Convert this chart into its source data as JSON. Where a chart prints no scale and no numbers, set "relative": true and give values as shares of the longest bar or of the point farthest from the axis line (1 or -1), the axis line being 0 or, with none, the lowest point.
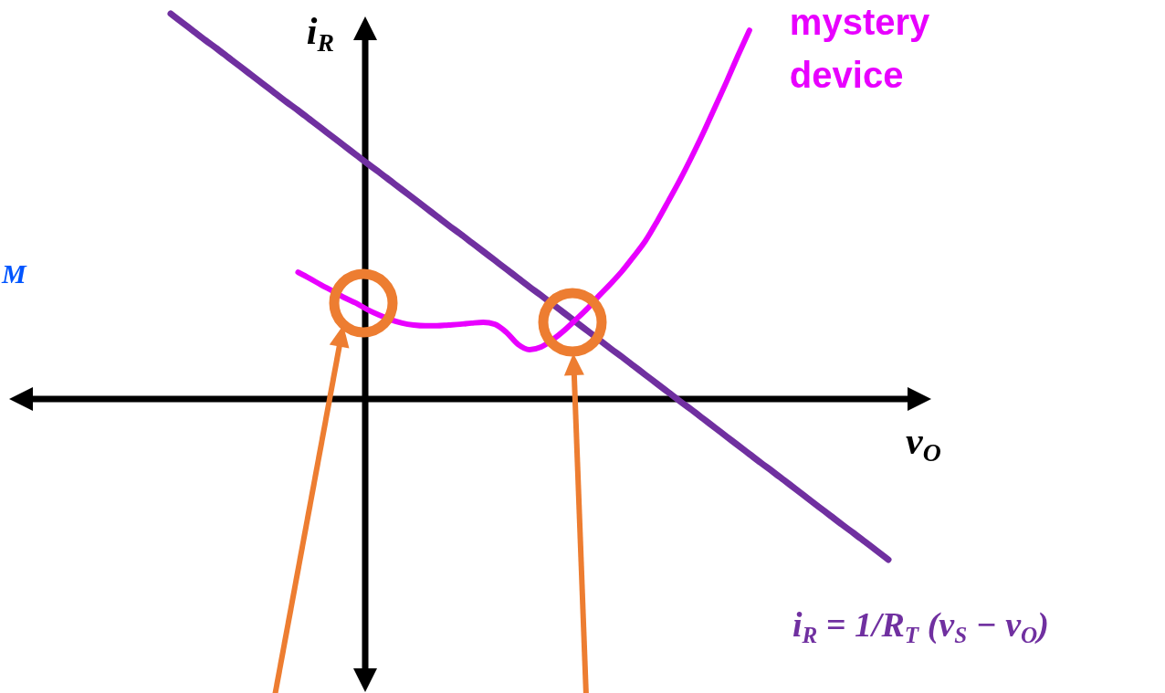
{
  "chart_data": {
    "type": "line",
    "relative": true,
    "xlabel": "v$_{O}$",
    "ylabel": "i$_{R}$",
    "annotations": [
      "M"
    ],
    "categories": [
      null,
      null,
      null,
      null,
      null,
      null,
      null,
      null,
      null,
      null,
      null,
      null,
      null,
      null,
      null,
      null,
      null,
      null,
      null,
      null,
      null,
      null,
      null,
      null,
      null,
      null,
      null,
      null,
      null,
      null,
      null,
      null,
      null,
      null,
      null,
      null,
      null,
      null,
      null,
      null,
      null,
      null,
      null,
      null,
      null,
      null,
      null,
      null,
      null,
      null,
      null,
      null,
      null,
      null,
      null,
      null,
      null,
      null,
      null,
      null,
      null,
      null,
      null
    ],
    "series": [
      {
        "name": "i$_{R}$ = 1/R$_{T}$ (v$_{S}$ − v$_{O}$)",
        "color": "#7030a0",
        "values": [
          1.0,
          0.977,
          0.954,
          0.931,
          0.909,
          0.886,
          0.863,
          0.84,
          0.817,
          0.794,
          0.771,
          0.749,
          0.726,
          0.703,
          0.68,
          0.657,
          0.634,
          0.611,
          0.589,
          0.566,
          0.543,
          0.52,
          0.497,
          0.474,
          0.451,
          0.429,
          0.406,
          0.383,
          0.36,
          0.337,
          0.314,
          0.291,
          0.269,
          0.246,
          0.223,
          0.2,
          0.177,
          0.154,
          0.131,
          0.109,
          0.086,
          0.063,
          0.04,
          0.017,
          -0.006,
          -0.028,
          -0.051,
          -0.074,
          -0.097,
          -0.12,
          -0.143,
          -0.166,
          -0.188,
          -0.211,
          -0.234,
          -0.257,
          -0.28,
          -0.303,
          -0.326,
          -0.348,
          -0.371,
          -0.394,
          -0.417
        ]
      },
      {
        "name": "mystery device",
        "color": "#e800ff",
        "values": [
          null,
          null,
          null,
          null,
          null,
          null,
          null,
          null,
          null,
          null,
          null,
          0.329,
          0.313,
          0.296,
          0.28,
          0.263,
          0.249,
          0.232,
          0.218,
          0.206,
          0.197,
          0.192,
          0.19,
          0.19,
          0.192,
          0.194,
          0.197,
          0.199,
          0.194,
          0.173,
          0.142,
          0.128,
          0.135,
          0.154,
          0.178,
          0.206,
          0.235,
          0.268,
          0.299,
          0.332,
          0.37,
          0.41,
          0.46,
          0.514,
          0.569,
          0.628,
          0.69,
          0.756,
          0.822,
          0.891,
          0.957,
          null,
          null,
          null,
          null,
          null,
          null,
          null,
          null,
          null,
          null,
          null,
          null
        ]
      }
    ]
  }
}
